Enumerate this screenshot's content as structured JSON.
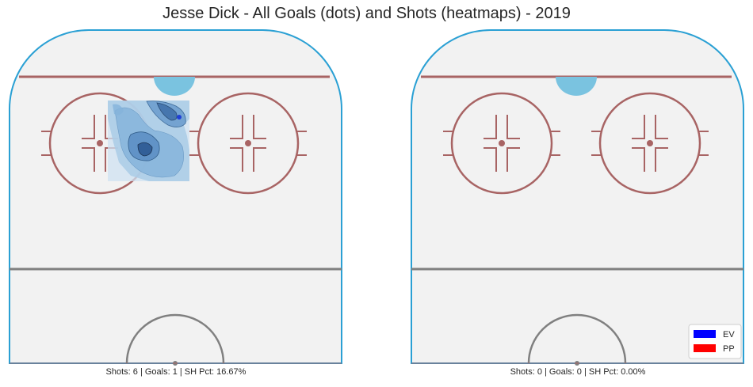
{
  "title": "Jesse Dick - All Goals (dots) and Shots (heatmaps) - 2019",
  "chart_data": [
    {
      "type": "heatmap",
      "caption": "Shots: 6 | Goals: 1 | SH Pct: 16.67%",
      "shots": 6,
      "goals": 1,
      "sh_pct": "16.67%",
      "goal_points": [
        {
          "strength": "EV"
        }
      ]
    },
    {
      "type": "heatmap",
      "caption": "Shots: 0 | Goals: 0 | SH Pct: 0.00%",
      "shots": 0,
      "goals": 0,
      "sh_pct": "0.00%",
      "goal_points": []
    }
  ],
  "legend": [
    {
      "label": "EV",
      "color": "#0000ff"
    },
    {
      "label": "PP",
      "color": "#ff0000"
    }
  ],
  "colors": {
    "boards": "#2aa0d4",
    "ice": "#f2f2f2",
    "red_line": "#a86464",
    "crease": "#7ac3e0",
    "center_line": "#808080",
    "heat": "#2f6eb0"
  }
}
